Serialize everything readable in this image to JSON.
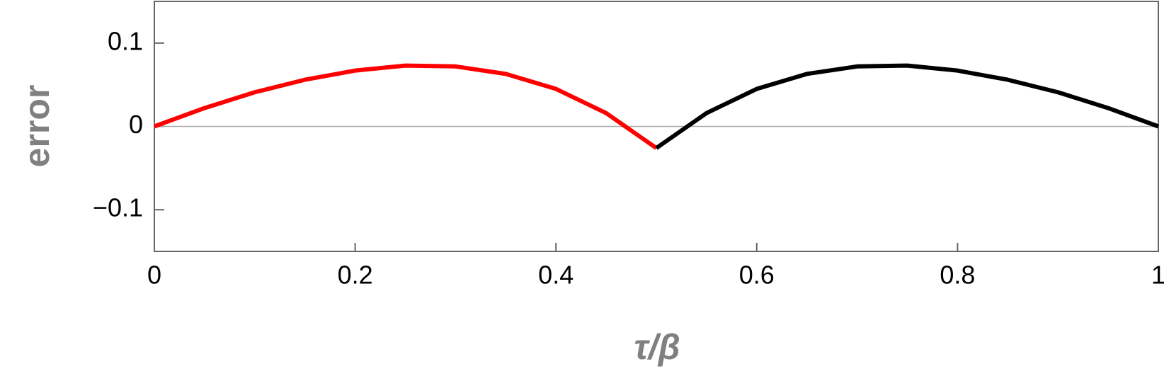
{
  "chart_data": {
    "type": "line",
    "x_label": "τ/β",
    "y_label": "error",
    "xlim": [
      0,
      1
    ],
    "ylim": [
      -0.15,
      0.15
    ],
    "xticks": [
      0,
      0.2,
      0.4,
      0.6,
      0.8,
      1
    ],
    "yticks": [
      {
        "value": -0.1,
        "label": "−0.1"
      },
      0,
      0.1
    ],
    "zero_line": true,
    "series": [
      {
        "color": "#ff0000",
        "x": [
          0,
          0.05,
          0.1,
          0.15,
          0.2,
          0.25,
          0.3,
          0.35,
          0.4,
          0.45,
          0.5
        ],
        "values": [
          0,
          0.022,
          0.041,
          0.056,
          0.067,
          0.073,
          0.072,
          0.063,
          0.045,
          0.016,
          -0.026
        ]
      },
      {
        "color": "#000000",
        "x": [
          0.5,
          0.55,
          0.6,
          0.65,
          0.7,
          0.75,
          0.8,
          0.85,
          0.9,
          0.95,
          1
        ],
        "values": [
          -0.026,
          0.016,
          0.045,
          0.063,
          0.072,
          0.073,
          0.067,
          0.056,
          0.041,
          0.022,
          0
        ]
      }
    ]
  }
}
